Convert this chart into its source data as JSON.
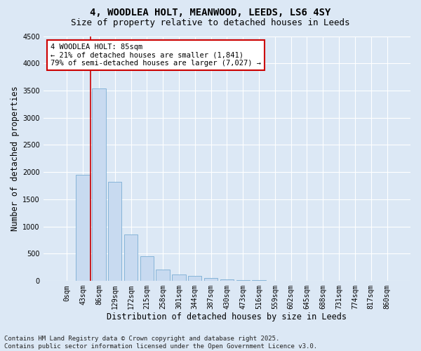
{
  "title_line1": "4, WOODLEA HOLT, MEANWOOD, LEEDS, LS6 4SY",
  "title_line2": "Size of property relative to detached houses in Leeds",
  "xlabel": "Distribution of detached houses by size in Leeds",
  "ylabel": "Number of detached properties",
  "bar_labels": [
    "0sqm",
    "43sqm",
    "86sqm",
    "129sqm",
    "172sqm",
    "215sqm",
    "258sqm",
    "301sqm",
    "344sqm",
    "387sqm",
    "430sqm",
    "473sqm",
    "516sqm",
    "559sqm",
    "602sqm",
    "645sqm",
    "688sqm",
    "731sqm",
    "774sqm",
    "817sqm",
    "860sqm"
  ],
  "bar_values": [
    5,
    1950,
    3540,
    1820,
    860,
    455,
    210,
    120,
    90,
    60,
    30,
    20,
    10,
    5,
    5,
    3,
    2,
    1,
    1,
    0,
    0
  ],
  "bar_color": "#c8daf0",
  "bar_edge_color": "#7aadd4",
  "ylim": [
    0,
    4500
  ],
  "yticks": [
    0,
    500,
    1000,
    1500,
    2000,
    2500,
    3000,
    3500,
    4000,
    4500
  ],
  "property_line_bin": 2,
  "property_line_color": "#cc0000",
  "annotation_text": "4 WOODLEA HOLT: 85sqm\n← 21% of detached houses are smaller (1,841)\n79% of semi-detached houses are larger (7,027) →",
  "annotation_box_color": "#ffffff",
  "annotation_box_edge": "#cc0000",
  "footer_text": "Contains HM Land Registry data © Crown copyright and database right 2025.\nContains public sector information licensed under the Open Government Licence v3.0.",
  "bg_color": "#dce8f5",
  "plot_bg_color": "#dce8f5",
  "grid_color": "#ffffff",
  "title_fontsize": 10,
  "subtitle_fontsize": 9,
  "axis_label_fontsize": 8.5,
  "tick_fontsize": 7,
  "footer_fontsize": 6.5,
  "annotation_fontsize": 7.5
}
